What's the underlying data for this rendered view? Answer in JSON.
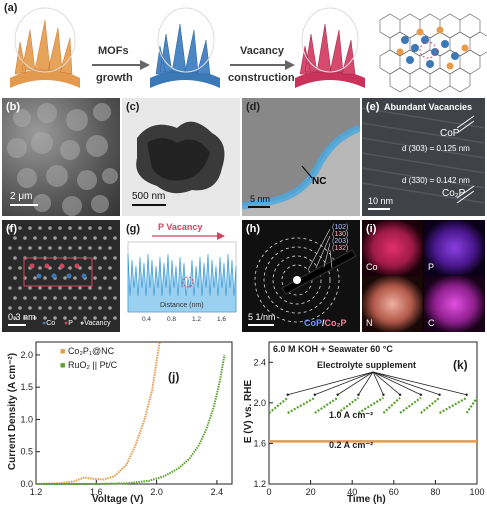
{
  "panel_a": {
    "label": "(a)",
    "step1": "MOFs",
    "step1b": "growth",
    "step2": "Vacancy",
    "step2b": "construction"
  },
  "panel_b": {
    "label": "(b)",
    "scale": "2 μm"
  },
  "panel_c": {
    "label": "(c)",
    "scale": "500 nm"
  },
  "panel_d": {
    "label": "(d)",
    "scale": "5 nm",
    "annotation": "NC"
  },
  "panel_e": {
    "label": "(e)",
    "title": "Abundant Vacancies",
    "phase1": "CoP",
    "d1": "d (303) = 0.125 nm",
    "d2": "d (330) = 0.142 nm",
    "phase2": "Co₂P",
    "scale": "10 nm"
  },
  "panel_f": {
    "label": "(f)",
    "scale": "0.3 nm",
    "legend_co": "Co",
    "legend_p": "P",
    "legend_v": "Vacancy"
  },
  "panel_g": {
    "label": "(g)",
    "title": "P Vacancy",
    "xlabel": "Distance (nm)",
    "ticks": [
      "0.4",
      "0.8",
      "1.2",
      "1.6"
    ]
  },
  "panel_h": {
    "label": "(h)",
    "rings": [
      "(102)",
      "(130)",
      "(203)",
      "(132)"
    ],
    "scale": "5 1/nm",
    "legend1": "CoP",
    "legend_sep": "/",
    "legend2": "Co₂P"
  },
  "panel_i": {
    "label": "(i)",
    "maps": [
      "Co",
      "P",
      "N",
      "C"
    ]
  },
  "panel_j": {
    "label": "(j)",
    "chart_data": {
      "type": "line",
      "xlabel": "Voltage (V)",
      "ylabel": "Current Density (A cm⁻²)",
      "xticks": [
        "1.2",
        "1.6",
        "2.0",
        "2.4"
      ],
      "yticks": [
        "0.0",
        "0.5",
        "1.0",
        "1.5",
        "2.0"
      ],
      "xlim": [
        1.2,
        2.5
      ],
      "ylim": [
        0.0,
        2.2
      ],
      "series": [
        {
          "name": "Co₂P₁@NC",
          "color": "#e69a4a",
          "x": [
            1.2,
            1.35,
            1.45,
            1.52,
            1.58,
            1.65,
            1.72,
            1.8,
            1.86,
            1.92,
            1.97,
            2.02
          ],
          "y": [
            0.0,
            0.01,
            0.04,
            0.1,
            0.08,
            0.07,
            0.12,
            0.3,
            0.6,
            1.0,
            1.45,
            2.2
          ]
        },
        {
          "name": "RuO₂ || Pt/C",
          "color": "#5aa02c",
          "x": [
            1.2,
            1.6,
            1.8,
            1.95,
            2.05,
            2.15,
            2.22,
            2.28,
            2.33,
            2.38,
            2.42,
            2.45
          ],
          "y": [
            0.0,
            0.0,
            0.01,
            0.05,
            0.12,
            0.25,
            0.4,
            0.6,
            0.85,
            1.2,
            1.6,
            2.0
          ]
        }
      ]
    }
  },
  "panel_k": {
    "label": "(k)",
    "title": "6.0 M KOH + Seawater 60 °C",
    "annotation": "Electrolyte supplement",
    "current_high": "1.0 A cm⁻²",
    "current_low": "0.2 A cm⁻²",
    "chart_data": {
      "type": "line",
      "xlabel": "Time (h)",
      "ylabel": "E (V) vs. RHE",
      "xticks": [
        "0",
        "20",
        "40",
        "60",
        "80",
        "100"
      ],
      "yticks": [
        "1.2",
        "1.6",
        "2.0",
        "2.4"
      ],
      "xlim": [
        0,
        100
      ],
      "ylim": [
        1.2,
        2.6
      ],
      "series": [
        {
          "name": "1.0 A cm⁻²",
          "color": "#5aa02c",
          "x_range": [
            0,
            100
          ],
          "y_start": 1.9,
          "y_end": 2.05,
          "resets": [
            9,
            22,
            33,
            43,
            55,
            63,
            73,
            82,
            95
          ]
        },
        {
          "name": "0.2 A cm⁻²",
          "color": "#e69a4a",
          "x_range": [
            0,
            100
          ],
          "y": 1.62
        }
      ],
      "arrows_at": [
        9,
        22,
        33,
        43,
        55,
        63,
        73,
        82,
        95
      ]
    }
  }
}
